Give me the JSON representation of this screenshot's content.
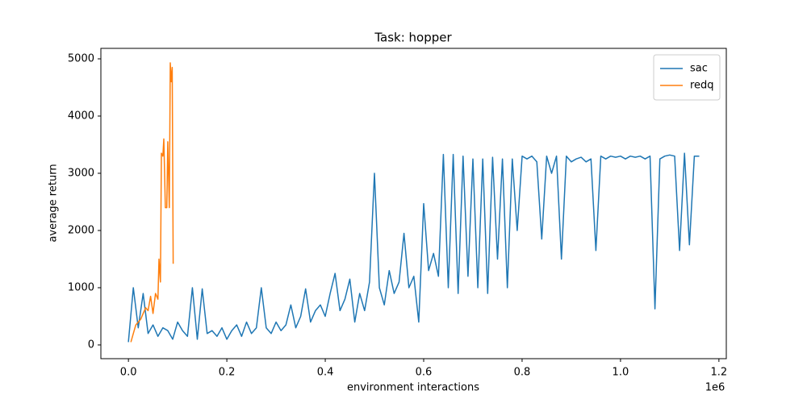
{
  "chart_data": {
    "type": "line",
    "title": "Task: hopper",
    "xlabel": "environment interactions",
    "ylabel": "average return",
    "x_offset_label": "1e6",
    "xlim": [
      -0.056,
      1.215
    ],
    "ylim": [
      -240,
      5183
    ],
    "xticks": [
      {
        "value": 0,
        "label": "0.0"
      },
      {
        "value": 0.2,
        "label": "0.2"
      },
      {
        "value": 0.4,
        "label": "0.4"
      },
      {
        "value": 0.6,
        "label": "0.6"
      },
      {
        "value": 0.8,
        "label": "0.8"
      },
      {
        "value": 1.0,
        "label": "1.0"
      },
      {
        "value": 1.2,
        "label": "1.2"
      }
    ],
    "yticks": [
      0,
      1000,
      2000,
      3000,
      4000,
      5000
    ],
    "legend": "upper right",
    "series": [
      {
        "name": "sac",
        "color": "#1f77b4",
        "x": [
          0.0,
          0.01,
          0.02,
          0.03,
          0.04,
          0.05,
          0.06,
          0.07,
          0.08,
          0.09,
          0.1,
          0.11,
          0.12,
          0.13,
          0.14,
          0.15,
          0.16,
          0.17,
          0.18,
          0.19,
          0.2,
          0.21,
          0.22,
          0.23,
          0.24,
          0.25,
          0.26,
          0.27,
          0.28,
          0.29,
          0.3,
          0.31,
          0.32,
          0.33,
          0.34,
          0.35,
          0.36,
          0.37,
          0.38,
          0.39,
          0.4,
          0.41,
          0.42,
          0.43,
          0.44,
          0.45,
          0.46,
          0.47,
          0.48,
          0.49,
          0.5,
          0.51,
          0.52,
          0.53,
          0.54,
          0.55,
          0.56,
          0.57,
          0.58,
          0.59,
          0.6,
          0.61,
          0.62,
          0.63,
          0.64,
          0.65,
          0.66,
          0.67,
          0.68,
          0.69,
          0.7,
          0.71,
          0.72,
          0.73,
          0.74,
          0.75,
          0.76,
          0.77,
          0.78,
          0.79,
          0.8,
          0.81,
          0.82,
          0.83,
          0.84,
          0.85,
          0.86,
          0.87,
          0.88,
          0.89,
          0.9,
          0.91,
          0.92,
          0.93,
          0.94,
          0.95,
          0.96,
          0.97,
          0.98,
          0.99,
          1.0,
          1.01,
          1.02,
          1.03,
          1.04,
          1.05,
          1.06,
          1.07,
          1.08,
          1.09,
          1.1,
          1.11,
          1.12,
          1.13,
          1.14,
          1.15,
          1.16
        ],
        "values": [
          50,
          1000,
          300,
          900,
          200,
          350,
          150,
          300,
          250,
          100,
          400,
          250,
          150,
          1000,
          100,
          980,
          200,
          250,
          150,
          300,
          100,
          250,
          350,
          150,
          400,
          200,
          300,
          1000,
          300,
          200,
          400,
          250,
          350,
          700,
          300,
          500,
          980,
          400,
          600,
          700,
          500,
          900,
          1250,
          600,
          800,
          1150,
          400,
          900,
          600,
          1100,
          3000,
          1000,
          700,
          1300,
          900,
          1100,
          1950,
          1000,
          1200,
          400,
          2470,
          1300,
          1600,
          1200,
          3330,
          1000,
          3330,
          900,
          3300,
          1200,
          3250,
          1000,
          3250,
          900,
          3280,
          1500,
          3250,
          1000,
          3250,
          2000,
          3300,
          3250,
          3300,
          3200,
          1850,
          3300,
          3000,
          3300,
          1500,
          3300,
          3200,
          3250,
          3280,
          3200,
          3250,
          1650,
          3300,
          3250,
          3300,
          3280,
          3300,
          3250,
          3300,
          3280,
          3300,
          3250,
          3300,
          630,
          3250,
          3300,
          3320,
          3300,
          1650,
          3350,
          1750,
          3300,
          3300
        ]
      },
      {
        "name": "redq",
        "color": "#ff7f0e",
        "x": [
          0.005,
          0.01,
          0.015,
          0.02,
          0.025,
          0.03,
          0.035,
          0.04,
          0.045,
          0.05,
          0.055,
          0.06,
          0.062,
          0.065,
          0.067,
          0.07,
          0.072,
          0.075,
          0.078,
          0.08,
          0.083,
          0.085,
          0.087,
          0.089,
          0.091
        ],
        "values": [
          50,
          200,
          350,
          400,
          450,
          550,
          650,
          600,
          850,
          550,
          900,
          800,
          1500,
          1100,
          3350,
          3300,
          3600,
          2400,
          2400,
          3550,
          2400,
          4930,
          4600,
          4850,
          1420
        ]
      }
    ]
  }
}
